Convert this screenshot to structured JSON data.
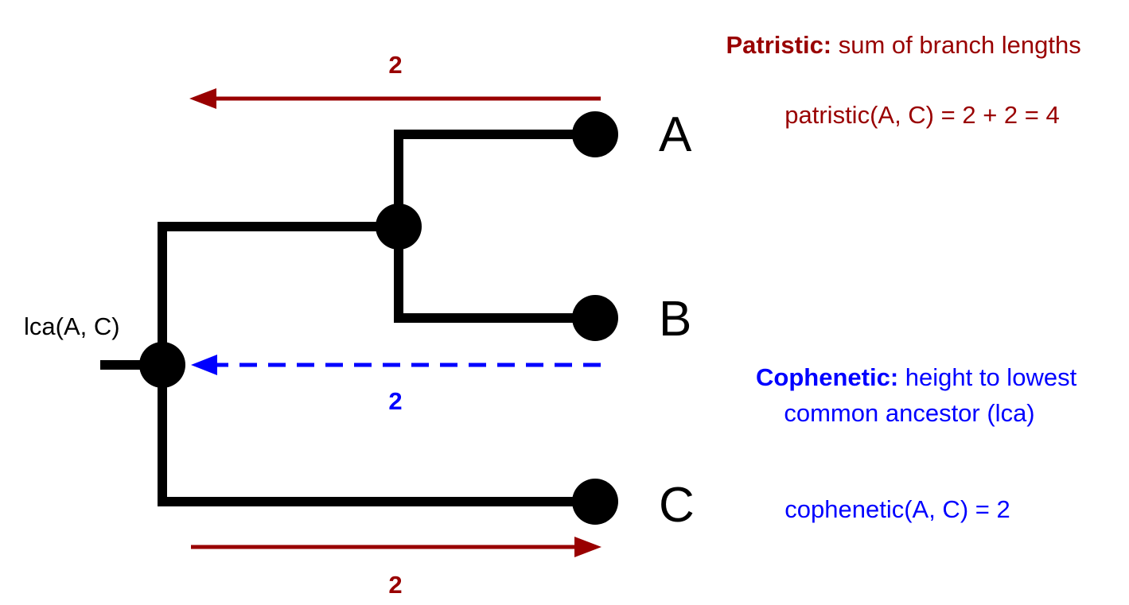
{
  "colors": {
    "tree": "#000000",
    "patristic": "#990000",
    "cophenetic": "#0000ff"
  },
  "tree": {
    "leaves": [
      "A",
      "B",
      "C"
    ],
    "lca_label": "lca(A, C)"
  },
  "patristic": {
    "heading_bold": "Patristic:",
    "heading_rest": " sum of branch lengths",
    "formula": "patristic(A, C) = 2 + 2 = 4",
    "top_arrow_label": "2",
    "bottom_arrow_label": "2"
  },
  "cophenetic": {
    "heading_bold": "Cophenetic:",
    "heading_rest": " height to lowest",
    "heading_line2": "common ancestor (lca)",
    "formula": "cophenetic(A, C) = 2",
    "arrow_label": "2"
  }
}
